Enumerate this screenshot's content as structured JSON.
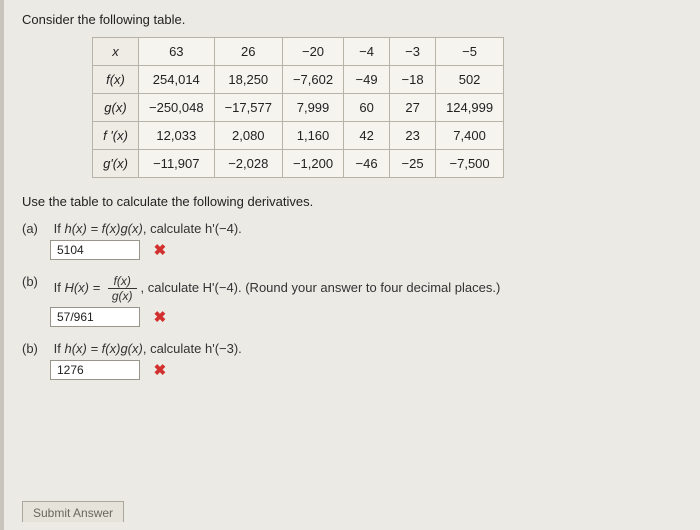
{
  "prompt": "Consider the following table.",
  "table": {
    "header": {
      "label": "x",
      "cols": [
        "63",
        "26",
        "−20",
        "−4",
        "−3",
        "−5"
      ]
    },
    "rows": [
      {
        "label": "f(x)",
        "cells": [
          "254,014",
          "18,250",
          "−7,602",
          "−49",
          "−18",
          "502"
        ]
      },
      {
        "label": "g(x)",
        "cells": [
          "−250,048",
          "−17,577",
          "7,999",
          "60",
          "27",
          "124,999"
        ]
      },
      {
        "label": "f '(x)",
        "cells": [
          "12,033",
          "2,080",
          "1,160",
          "42",
          "23",
          "7,400"
        ]
      },
      {
        "label": "g'(x)",
        "cells": [
          "−11,907",
          "−2,028",
          "−1,200",
          "−46",
          "−25",
          "−7,500"
        ]
      }
    ],
    "border_color": "#b7b3a8",
    "cell_bg": "#f6f4ef"
  },
  "instruction": "Use the table to calculate the following derivatives.",
  "parts": {
    "a": {
      "label": "(a)",
      "text_before": "If ",
      "eq": "h(x) = f(x)g(x)",
      "text_after": ", calculate h'(−4).",
      "answer": "5104",
      "correct": false
    },
    "b1": {
      "label": "(b)",
      "text_before": "If ",
      "eq_lhs": "H(x) = ",
      "frac_num": "f(x)",
      "frac_den": "g(x)",
      "text_after": ", calculate H'(−4). (Round your answer to four decimal places.)",
      "answer": "57/961",
      "correct": false
    },
    "b2": {
      "label": "(b)",
      "text_before": "If ",
      "eq": "h(x) = f(x)g(x)",
      "text_after": ", calculate h'(−3).",
      "answer": "1276",
      "correct": false
    }
  },
  "submit_label": "Submit Answer",
  "colors": {
    "page_bg": "#eceae4",
    "outer_bg": "#d8d5ce",
    "wrong": "#d22f2f"
  }
}
